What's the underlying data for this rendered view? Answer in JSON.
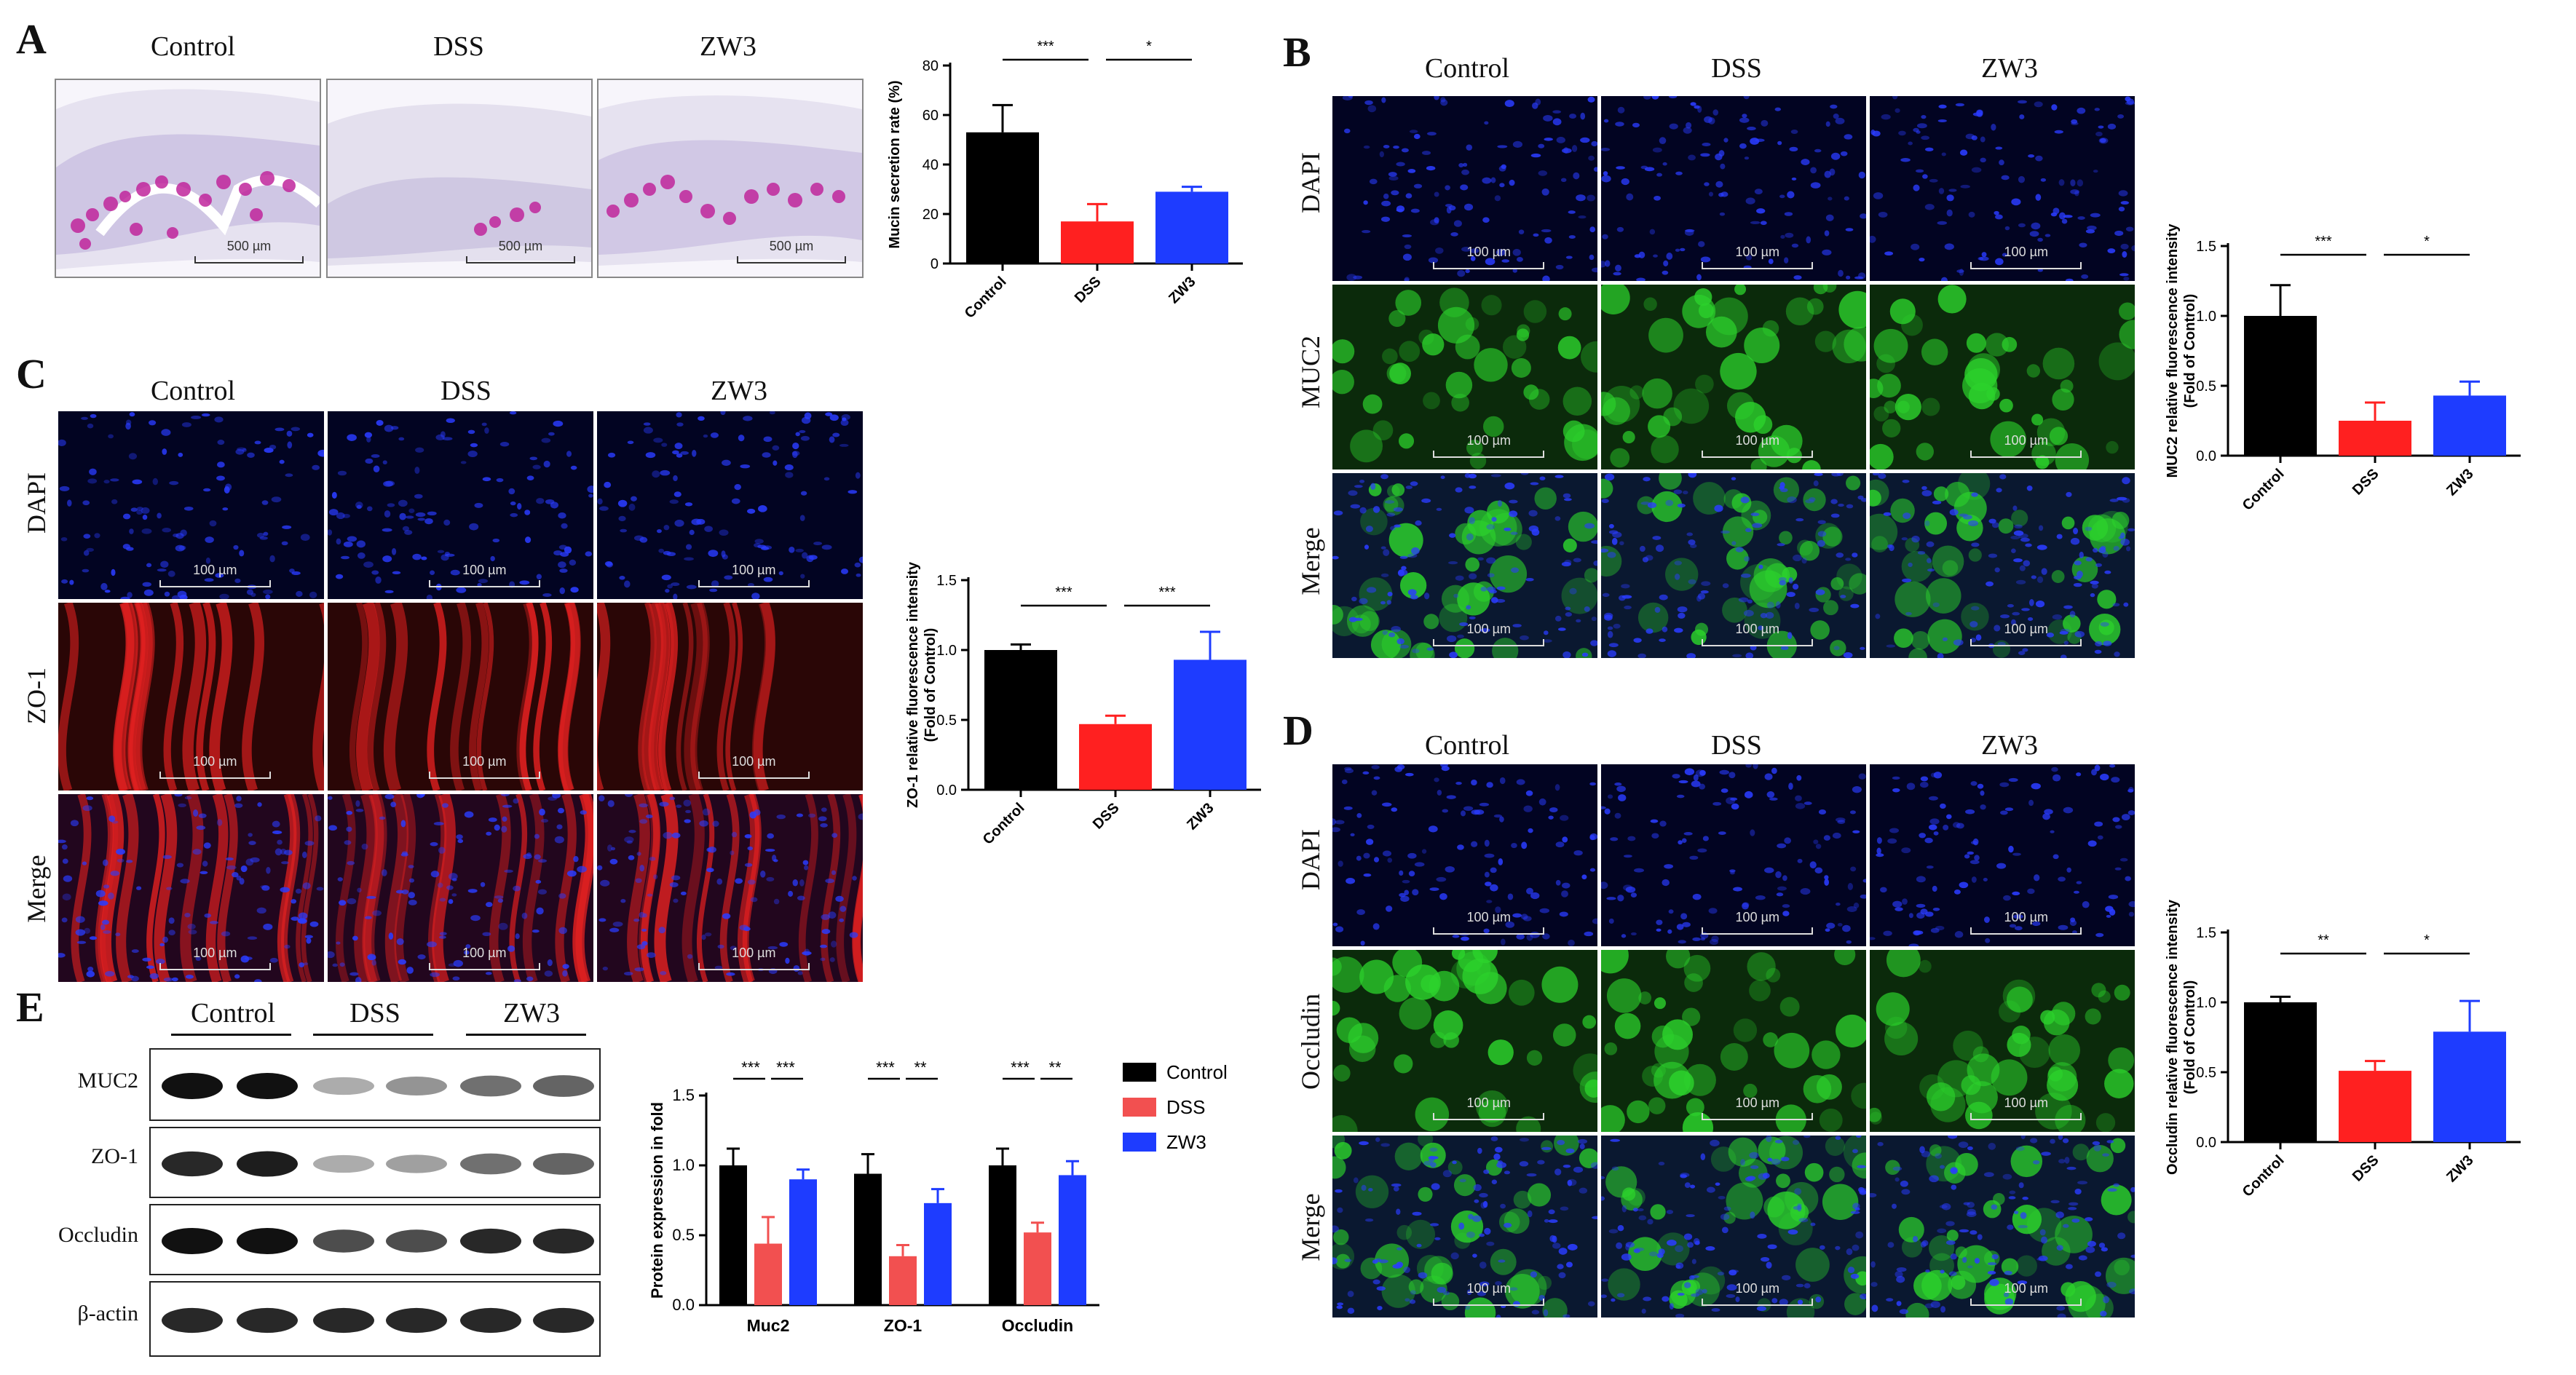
{
  "panels": {
    "A": {
      "letter": "A",
      "columns": [
        "Control",
        "DSS",
        "ZW3"
      ],
      "scale": "500 µm"
    },
    "B": {
      "letter": "B",
      "columns": [
        "Control",
        "DSS",
        "ZW3"
      ],
      "rows": [
        "DAPI",
        "MUC2",
        "Merge"
      ],
      "scale": "100 µm"
    },
    "C": {
      "letter": "C",
      "columns": [
        "Control",
        "DSS",
        "ZW3"
      ],
      "rows": [
        "DAPI",
        "ZO-1",
        "Merge"
      ],
      "scale": "100 µm"
    },
    "D": {
      "letter": "D",
      "columns": [
        "Control",
        "DSS",
        "ZW3"
      ],
      "rows": [
        "DAPI",
        "Occludin",
        "Merge"
      ],
      "scale": "100 µm"
    },
    "E": {
      "letter": "E",
      "columns": [
        "Control",
        "DSS",
        "ZW3"
      ],
      "rows": [
        "MUC2",
        "ZO-1",
        "Occludin",
        "β-actin"
      ]
    }
  },
  "colors": {
    "control": "#000000",
    "dss": "#ff2020",
    "zw3": "#1e3cff",
    "dss_e": "#f25050"
  },
  "chart_data": [
    {
      "id": "A",
      "type": "bar",
      "categories": [
        "Control",
        "DSS",
        "ZW3"
      ],
      "values": [
        53,
        17,
        29
      ],
      "errors": [
        11,
        7,
        2
      ],
      "ylabel": "Mucin secretion rate (%)",
      "ylim": [
        0,
        80
      ],
      "yticks": [
        "0",
        "20",
        "40",
        "60",
        "80"
      ],
      "significance": [
        {
          "from": 0,
          "to": 1,
          "label": "***"
        },
        {
          "from": 1,
          "to": 2,
          "label": "*"
        }
      ]
    },
    {
      "id": "B",
      "type": "bar",
      "categories": [
        "Control",
        "DSS",
        "ZW3"
      ],
      "values": [
        1.0,
        0.25,
        0.43
      ],
      "errors": [
        0.22,
        0.13,
        0.1
      ],
      "ylabel": "MUC2 relative fluorescence intensity",
      "ylabel2": "(Fold of Control)",
      "ylim": [
        0,
        1.5
      ],
      "yticks": [
        "0.0",
        "0.5",
        "1.0",
        "1.5"
      ],
      "significance": [
        {
          "from": 0,
          "to": 1,
          "label": "***"
        },
        {
          "from": 1,
          "to": 2,
          "label": "*"
        }
      ]
    },
    {
      "id": "C",
      "type": "bar",
      "categories": [
        "Control",
        "DSS",
        "ZW3"
      ],
      "values": [
        1.0,
        0.47,
        0.93
      ],
      "errors": [
        0.04,
        0.06,
        0.2
      ],
      "ylabel": "ZO-1 relative fluorescence intensity",
      "ylabel2": "(Fold of Control)",
      "ylim": [
        0,
        1.5
      ],
      "yticks": [
        "0.0",
        "0.5",
        "1.0",
        "1.5"
      ],
      "significance": [
        {
          "from": 0,
          "to": 1,
          "label": "***"
        },
        {
          "from": 1,
          "to": 2,
          "label": "***"
        }
      ]
    },
    {
      "id": "D",
      "type": "bar",
      "categories": [
        "Control",
        "DSS",
        "ZW3"
      ],
      "values": [
        1.0,
        0.51,
        0.79
      ],
      "errors": [
        0.04,
        0.07,
        0.22
      ],
      "ylabel": "Occludin relative fluorescence intensity",
      "ylabel2": "(Fold of Control)",
      "ylim": [
        0,
        1.5
      ],
      "yticks": [
        "0.0",
        "0.5",
        "1.0",
        "1.5"
      ],
      "significance": [
        {
          "from": 0,
          "to": 1,
          "label": "**"
        },
        {
          "from": 1,
          "to": 2,
          "label": "*"
        }
      ]
    },
    {
      "id": "E",
      "type": "bar",
      "categories": [
        "Muc2",
        "ZO-1",
        "Occludin"
      ],
      "series": [
        {
          "name": "Control",
          "values": [
            1.0,
            0.94,
            1.0
          ],
          "errors": [
            0.12,
            0.14,
            0.12
          ]
        },
        {
          "name": "DSS",
          "values": [
            0.44,
            0.35,
            0.52
          ],
          "errors": [
            0.19,
            0.08,
            0.07
          ]
        },
        {
          "name": "ZW3",
          "values": [
            0.9,
            0.73,
            0.93
          ],
          "errors": [
            0.07,
            0.1,
            0.1
          ]
        }
      ],
      "ylabel": "Protein expression in fold",
      "ylim": [
        0,
        1.5
      ],
      "yticks": [
        "0.0",
        "0.5",
        "1.0",
        "1.5"
      ],
      "significance": [
        {
          "cat": 0,
          "labels": [
            "***",
            "***"
          ]
        },
        {
          "cat": 1,
          "labels": [
            "***",
            "**"
          ]
        },
        {
          "cat": 2,
          "labels": [
            "***",
            "**"
          ]
        }
      ]
    }
  ]
}
